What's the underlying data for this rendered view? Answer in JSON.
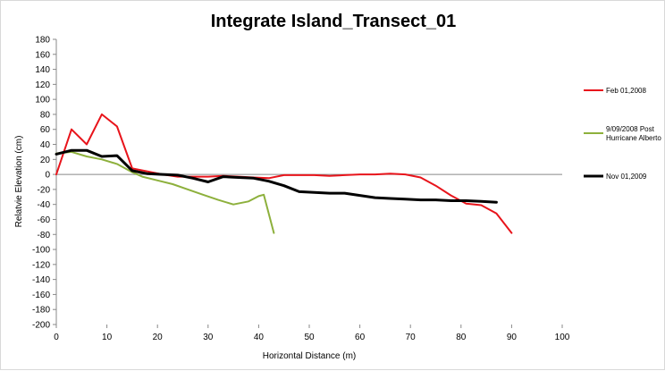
{
  "chart_data": {
    "type": "line",
    "title": "Integrate Island_Transect_01",
    "xlabel": "Horizontal Distance (m)",
    "ylabel": "Relatvie Elevation (cm)",
    "xlim": [
      0,
      100
    ],
    "ylim": [
      -200,
      180
    ],
    "xticks": [
      0,
      10,
      20,
      30,
      40,
      50,
      60,
      70,
      80,
      90,
      100
    ],
    "yticks": [
      180,
      160,
      140,
      120,
      100,
      80,
      60,
      40,
      20,
      0,
      -20,
      -40,
      -60,
      -80,
      -100,
      -120,
      -140,
      -160,
      -180,
      -200
    ],
    "grid": false,
    "legend_position": "right",
    "series": [
      {
        "name": "Feb 01,2008",
        "color": "#e8141b",
        "legend_lines": [
          "Feb 01,2008"
        ],
        "points": [
          [
            0,
            0
          ],
          [
            3,
            60
          ],
          [
            6,
            40
          ],
          [
            9,
            80
          ],
          [
            12,
            64
          ],
          [
            15,
            8
          ],
          [
            18,
            4
          ],
          [
            21,
            0
          ],
          [
            24,
            -3
          ],
          [
            27,
            -3
          ],
          [
            30,
            -3
          ],
          [
            33,
            -2
          ],
          [
            36,
            -3
          ],
          [
            39,
            -4
          ],
          [
            42,
            -5
          ],
          [
            45,
            -1
          ],
          [
            48,
            -1
          ],
          [
            51,
            -1
          ],
          [
            54,
            -2
          ],
          [
            57,
            -1
          ],
          [
            60,
            0
          ],
          [
            63,
            0
          ],
          [
            66,
            1
          ],
          [
            69,
            0
          ],
          [
            72,
            -4
          ],
          [
            75,
            -15
          ],
          [
            78,
            -28
          ],
          [
            81,
            -39
          ],
          [
            84,
            -41
          ],
          [
            87,
            -52
          ],
          [
            90,
            -78
          ]
        ]
      },
      {
        "name": "9/09/2008 Post Hurricane Alberto",
        "color": "#8db03c",
        "legend_lines": [
          "9/09/2008 Post",
          "Hurricane Alberto"
        ],
        "points": [
          [
            0,
            28
          ],
          [
            3,
            30
          ],
          [
            6,
            24
          ],
          [
            9,
            20
          ],
          [
            12,
            14
          ],
          [
            15,
            3
          ],
          [
            17,
            -3
          ],
          [
            20,
            -8
          ],
          [
            23,
            -13
          ],
          [
            26,
            -20
          ],
          [
            29,
            -27
          ],
          [
            32,
            -34
          ],
          [
            35,
            -40
          ],
          [
            38,
            -36
          ],
          [
            40,
            -29
          ],
          [
            41,
            -27
          ],
          [
            43,
            -78
          ]
        ]
      },
      {
        "name": "Nov 01,2009",
        "color": "#000000",
        "legend_lines": [
          "Nov 01,2009"
        ],
        "points": [
          [
            0,
            27
          ],
          [
            3,
            32
          ],
          [
            6,
            32
          ],
          [
            9,
            24
          ],
          [
            12,
            25
          ],
          [
            15,
            5
          ],
          [
            18,
            1
          ],
          [
            21,
            0
          ],
          [
            24,
            -1
          ],
          [
            27,
            -5
          ],
          [
            30,
            -10
          ],
          [
            33,
            -3
          ],
          [
            36,
            -4
          ],
          [
            39,
            -5
          ],
          [
            42,
            -9
          ],
          [
            45,
            -15
          ],
          [
            48,
            -23
          ],
          [
            51,
            -24
          ],
          [
            54,
            -25
          ],
          [
            57,
            -25
          ],
          [
            60,
            -28
          ],
          [
            63,
            -31
          ],
          [
            66,
            -32
          ],
          [
            69,
            -33
          ],
          [
            72,
            -34
          ],
          [
            75,
            -34
          ],
          [
            78,
            -35
          ],
          [
            81,
            -35
          ],
          [
            84,
            -36
          ],
          [
            87,
            -37
          ]
        ]
      }
    ]
  }
}
